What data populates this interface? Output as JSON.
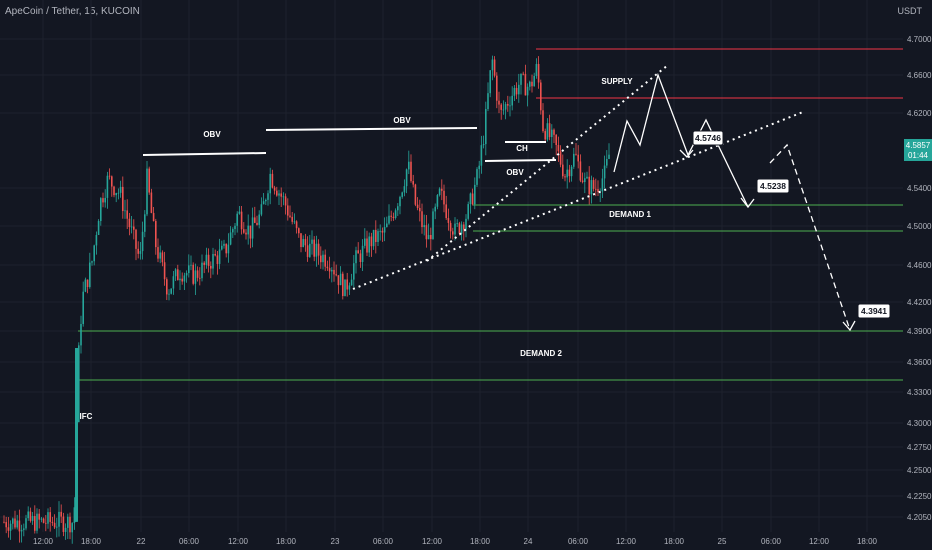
{
  "header": {
    "symbol": "ApeCoin / Tether, 15, KUCOIN",
    "currency": "USDT"
  },
  "chart_data": {
    "type": "candlestick",
    "ylim": [
      4.185,
      4.725
    ],
    "y_ticks": [
      "4.7000",
      "4.6600",
      "4.6200",
      "4.5400",
      "4.5000",
      "4.4600",
      "4.4200",
      "4.3900",
      "4.3600",
      "4.3300",
      "4.3000",
      "4.2750",
      "4.2500",
      "4.2250",
      "4.2050"
    ],
    "x_ticks": [
      "12:00",
      "18:00",
      "22",
      "06:00",
      "12:00",
      "18:00",
      "23",
      "06:00",
      "12:00",
      "18:00",
      "24",
      "06:00",
      "12:00",
      "18:00",
      "25",
      "06:00",
      "12:00",
      "18:00"
    ],
    "price_label": {
      "value": "4.5857",
      "countdown": "01:44"
    },
    "colors": {
      "up": "#26a69a",
      "down": "#ef5350",
      "supply": "#f23645",
      "demand": "#4caf50",
      "label_bg": "#26a69a"
    },
    "zones": [
      {
        "name": "SUPPLY",
        "lines": [
          4.688,
          4.633
        ]
      },
      {
        "name": "DEMAND 1",
        "lines": [
          4.5238,
          4.4955
        ]
      },
      {
        "name": "DEMAND 2",
        "lines": [
          4.3941,
          4.3418
        ]
      }
    ],
    "annotations": [
      "OBV",
      "OBV",
      "CH",
      "OBV",
      "IFC"
    ],
    "targets": [
      "4.5746",
      "4.5238",
      "4.3941"
    ]
  }
}
